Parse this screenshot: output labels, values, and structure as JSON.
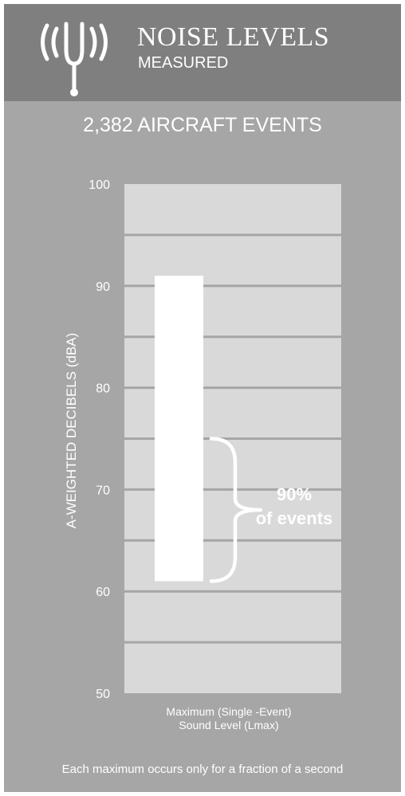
{
  "header": {
    "title": "NOISE LEVELS",
    "subtitle": "MEASURED",
    "icon": "tuning-fork-icon"
  },
  "summary": {
    "events_count": "2,382 AIRCRAFT EVENTS"
  },
  "footnote": "Each maximum occurs only for a fraction of a second",
  "colors": {
    "header_bg": "#7f7f7f",
    "panel_bg": "#a6a6a6",
    "plot_bg": "#d9d9d9",
    "gridline": "#a6a6a6",
    "bar": "#ffffff",
    "text": "#ffffff"
  },
  "chart_data": {
    "type": "bar",
    "ylabel": "A-WEIGHTED DECIBELS (dBA)",
    "xlabel": "",
    "ylim": [
      50,
      100
    ],
    "yticks": [
      50,
      60,
      70,
      80,
      90,
      100
    ],
    "grid_step": 5,
    "grid": true,
    "categories": [
      "Maximum (Single -Event) Sound Level (Lmax)"
    ],
    "category_label_lines": [
      "Maximum (Single -Event)",
      "Sound Level (Lmax)"
    ],
    "range_bar": {
      "low": 61,
      "high": 91
    },
    "annotation": {
      "lines": [
        "90%",
        "of events"
      ],
      "range": [
        61,
        75
      ]
    }
  }
}
